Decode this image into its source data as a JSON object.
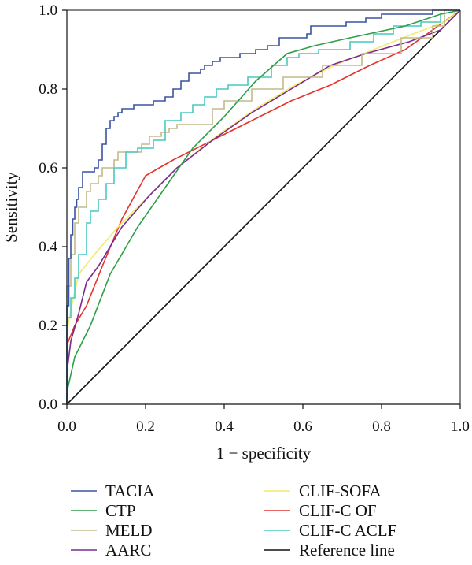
{
  "chart_data": {
    "type": "line",
    "xlabel": "1 − specificity",
    "ylabel": "Sensitivity",
    "xlim": [
      0,
      1
    ],
    "ylim": [
      0,
      1
    ],
    "xticks": [
      "0.0",
      "0.2",
      "0.4",
      "0.6",
      "0.8",
      "1.0"
    ],
    "yticks": [
      "0.0",
      "0.2",
      "0.4",
      "0.6",
      "0.8",
      "1.0"
    ],
    "grid": false,
    "legend_position": "bottom",
    "series": [
      {
        "name": "TACIA",
        "color": "#3a53a4",
        "points": [
          [
            0,
            0
          ],
          [
            0,
            0.25
          ],
          [
            0.005,
            0.25
          ],
          [
            0.005,
            0.37
          ],
          [
            0.01,
            0.37
          ],
          [
            0.01,
            0.43
          ],
          [
            0.015,
            0.43
          ],
          [
            0.015,
            0.47
          ],
          [
            0.02,
            0.47
          ],
          [
            0.02,
            0.5
          ],
          [
            0.025,
            0.5
          ],
          [
            0.025,
            0.52
          ],
          [
            0.03,
            0.52
          ],
          [
            0.03,
            0.55
          ],
          [
            0.04,
            0.55
          ],
          [
            0.04,
            0.59
          ],
          [
            0.07,
            0.59
          ],
          [
            0.07,
            0.6
          ],
          [
            0.08,
            0.6
          ],
          [
            0.08,
            0.62
          ],
          [
            0.09,
            0.62
          ],
          [
            0.09,
            0.66
          ],
          [
            0.1,
            0.66
          ],
          [
            0.1,
            0.7
          ],
          [
            0.11,
            0.7
          ],
          [
            0.11,
            0.72
          ],
          [
            0.12,
            0.72
          ],
          [
            0.12,
            0.73
          ],
          [
            0.13,
            0.73
          ],
          [
            0.13,
            0.74
          ],
          [
            0.14,
            0.74
          ],
          [
            0.14,
            0.75
          ],
          [
            0.17,
            0.75
          ],
          [
            0.17,
            0.76
          ],
          [
            0.22,
            0.76
          ],
          [
            0.22,
            0.77
          ],
          [
            0.25,
            0.77
          ],
          [
            0.25,
            0.78
          ],
          [
            0.27,
            0.78
          ],
          [
            0.27,
            0.8
          ],
          [
            0.29,
            0.8
          ],
          [
            0.29,
            0.82
          ],
          [
            0.31,
            0.82
          ],
          [
            0.31,
            0.84
          ],
          [
            0.34,
            0.84
          ],
          [
            0.34,
            0.85
          ],
          [
            0.35,
            0.85
          ],
          [
            0.35,
            0.86
          ],
          [
            0.37,
            0.86
          ],
          [
            0.37,
            0.87
          ],
          [
            0.39,
            0.87
          ],
          [
            0.39,
            0.88
          ],
          [
            0.44,
            0.88
          ],
          [
            0.44,
            0.89
          ],
          [
            0.48,
            0.89
          ],
          [
            0.48,
            0.9
          ],
          [
            0.51,
            0.9
          ],
          [
            0.51,
            0.91
          ],
          [
            0.54,
            0.91
          ],
          [
            0.54,
            0.93
          ],
          [
            0.61,
            0.93
          ],
          [
            0.61,
            0.94
          ],
          [
            0.62,
            0.94
          ],
          [
            0.62,
            0.96
          ],
          [
            0.71,
            0.96
          ],
          [
            0.71,
            0.97
          ],
          [
            0.76,
            0.97
          ],
          [
            0.76,
            0.98
          ],
          [
            0.8,
            0.98
          ],
          [
            0.8,
            0.99
          ],
          [
            0.93,
            0.99
          ],
          [
            0.93,
            1.0
          ],
          [
            1,
            1
          ]
        ]
      },
      {
        "name": "CTP",
        "color": "#2e9f46",
        "points": [
          [
            0,
            0
          ],
          [
            0,
            0.03
          ],
          [
            0.02,
            0.12
          ],
          [
            0.06,
            0.2
          ],
          [
            0.11,
            0.33
          ],
          [
            0.18,
            0.45
          ],
          [
            0.25,
            0.55
          ],
          [
            0.32,
            0.65
          ],
          [
            0.4,
            0.73
          ],
          [
            0.48,
            0.82
          ],
          [
            0.56,
            0.89
          ],
          [
            0.63,
            0.91
          ],
          [
            0.72,
            0.93
          ],
          [
            0.86,
            0.96
          ],
          [
            0.95,
            0.99
          ],
          [
            1,
            1
          ]
        ]
      },
      {
        "name": "MELD",
        "color": "#c2bb8a",
        "points": [
          [
            0,
            0
          ],
          [
            0,
            0.3
          ],
          [
            0.01,
            0.3
          ],
          [
            0.01,
            0.38
          ],
          [
            0.02,
            0.38
          ],
          [
            0.02,
            0.46
          ],
          [
            0.03,
            0.46
          ],
          [
            0.03,
            0.5
          ],
          [
            0.05,
            0.5
          ],
          [
            0.05,
            0.54
          ],
          [
            0.06,
            0.54
          ],
          [
            0.06,
            0.56
          ],
          [
            0.08,
            0.56
          ],
          [
            0.08,
            0.58
          ],
          [
            0.09,
            0.58
          ],
          [
            0.09,
            0.6
          ],
          [
            0.12,
            0.6
          ],
          [
            0.12,
            0.62
          ],
          [
            0.13,
            0.62
          ],
          [
            0.13,
            0.64
          ],
          [
            0.19,
            0.64
          ],
          [
            0.19,
            0.66
          ],
          [
            0.21,
            0.66
          ],
          [
            0.21,
            0.68
          ],
          [
            0.24,
            0.68
          ],
          [
            0.24,
            0.69
          ],
          [
            0.26,
            0.69
          ],
          [
            0.26,
            0.7
          ],
          [
            0.28,
            0.7
          ],
          [
            0.28,
            0.71
          ],
          [
            0.37,
            0.71
          ],
          [
            0.37,
            0.75
          ],
          [
            0.4,
            0.75
          ],
          [
            0.4,
            0.77
          ],
          [
            0.47,
            0.77
          ],
          [
            0.47,
            0.8
          ],
          [
            0.55,
            0.8
          ],
          [
            0.55,
            0.83
          ],
          [
            0.65,
            0.83
          ],
          [
            0.65,
            0.86
          ],
          [
            0.75,
            0.86
          ],
          [
            0.75,
            0.89
          ],
          [
            0.85,
            0.89
          ],
          [
            0.85,
            0.93
          ],
          [
            0.93,
            0.93
          ],
          [
            0.93,
            0.96
          ],
          [
            0.96,
            0.96
          ],
          [
            0.96,
            1.0
          ],
          [
            1,
            1
          ]
        ]
      },
      {
        "name": "AARC",
        "color": "#7a2b8e",
        "points": [
          [
            0,
            0
          ],
          [
            0,
            0.08
          ],
          [
            0.01,
            0.16
          ],
          [
            0.03,
            0.23
          ],
          [
            0.05,
            0.31
          ],
          [
            0.08,
            0.35
          ],
          [
            0.14,
            0.45
          ],
          [
            0.21,
            0.53
          ],
          [
            0.28,
            0.6
          ],
          [
            0.37,
            0.67
          ],
          [
            0.47,
            0.74
          ],
          [
            0.57,
            0.8
          ],
          [
            0.67,
            0.86
          ],
          [
            0.76,
            0.89
          ],
          [
            0.87,
            0.92
          ],
          [
            0.95,
            0.95
          ],
          [
            1,
            1
          ]
        ]
      },
      {
        "name": "CLIF-SOFA",
        "color": "#f2ea6a",
        "points": [
          [
            0,
            0
          ],
          [
            0,
            0.18
          ],
          [
            0.01,
            0.24
          ],
          [
            0.03,
            0.33
          ],
          [
            0.07,
            0.38
          ],
          [
            0.13,
            0.45
          ],
          [
            0.2,
            0.52
          ],
          [
            0.28,
            0.6
          ],
          [
            0.38,
            0.68
          ],
          [
            0.48,
            0.75
          ],
          [
            0.58,
            0.81
          ],
          [
            0.68,
            0.86
          ],
          [
            0.78,
            0.9
          ],
          [
            0.88,
            0.94
          ],
          [
            0.96,
            0.97
          ],
          [
            1,
            1
          ]
        ]
      },
      {
        "name": "CLIF-C OF",
        "color": "#e3332b",
        "points": [
          [
            0,
            0
          ],
          [
            0,
            0.15
          ],
          [
            0.02,
            0.2
          ],
          [
            0.05,
            0.25
          ],
          [
            0.09,
            0.35
          ],
          [
            0.14,
            0.47
          ],
          [
            0.2,
            0.58
          ],
          [
            0.27,
            0.62
          ],
          [
            0.37,
            0.67
          ],
          [
            0.47,
            0.72
          ],
          [
            0.57,
            0.77
          ],
          [
            0.67,
            0.81
          ],
          [
            0.77,
            0.86
          ],
          [
            0.86,
            0.9
          ],
          [
            0.93,
            0.95
          ],
          [
            1,
            1
          ]
        ]
      },
      {
        "name": "CLIF-C ACLF",
        "color": "#48c9bf",
        "points": [
          [
            0,
            0
          ],
          [
            0,
            0.22
          ],
          [
            0.01,
            0.22
          ],
          [
            0.01,
            0.27
          ],
          [
            0.02,
            0.27
          ],
          [
            0.02,
            0.32
          ],
          [
            0.03,
            0.32
          ],
          [
            0.03,
            0.38
          ],
          [
            0.05,
            0.38
          ],
          [
            0.05,
            0.46
          ],
          [
            0.06,
            0.46
          ],
          [
            0.06,
            0.49
          ],
          [
            0.08,
            0.49
          ],
          [
            0.08,
            0.52
          ],
          [
            0.1,
            0.52
          ],
          [
            0.1,
            0.56
          ],
          [
            0.12,
            0.56
          ],
          [
            0.12,
            0.6
          ],
          [
            0.15,
            0.6
          ],
          [
            0.15,
            0.64
          ],
          [
            0.18,
            0.64
          ],
          [
            0.18,
            0.65
          ],
          [
            0.22,
            0.65
          ],
          [
            0.22,
            0.67
          ],
          [
            0.25,
            0.67
          ],
          [
            0.25,
            0.72
          ],
          [
            0.29,
            0.72
          ],
          [
            0.29,
            0.74
          ],
          [
            0.32,
            0.74
          ],
          [
            0.32,
            0.76
          ],
          [
            0.35,
            0.76
          ],
          [
            0.35,
            0.78
          ],
          [
            0.38,
            0.78
          ],
          [
            0.38,
            0.8
          ],
          [
            0.41,
            0.8
          ],
          [
            0.41,
            0.81
          ],
          [
            0.46,
            0.81
          ],
          [
            0.46,
            0.83
          ],
          [
            0.52,
            0.83
          ],
          [
            0.52,
            0.86
          ],
          [
            0.56,
            0.86
          ],
          [
            0.56,
            0.88
          ],
          [
            0.59,
            0.88
          ],
          [
            0.59,
            0.89
          ],
          [
            0.64,
            0.89
          ],
          [
            0.64,
            0.9
          ],
          [
            0.72,
            0.9
          ],
          [
            0.72,
            0.92
          ],
          [
            0.78,
            0.92
          ],
          [
            0.78,
            0.94
          ],
          [
            0.83,
            0.94
          ],
          [
            0.83,
            0.96
          ],
          [
            0.9,
            0.96
          ],
          [
            0.9,
            0.97
          ],
          [
            0.95,
            0.97
          ],
          [
            0.95,
            0.99
          ],
          [
            1,
            1
          ]
        ]
      },
      {
        "name": "Reference line",
        "color": "#111111",
        "points": [
          [
            0,
            0
          ],
          [
            1,
            1
          ]
        ]
      }
    ]
  }
}
